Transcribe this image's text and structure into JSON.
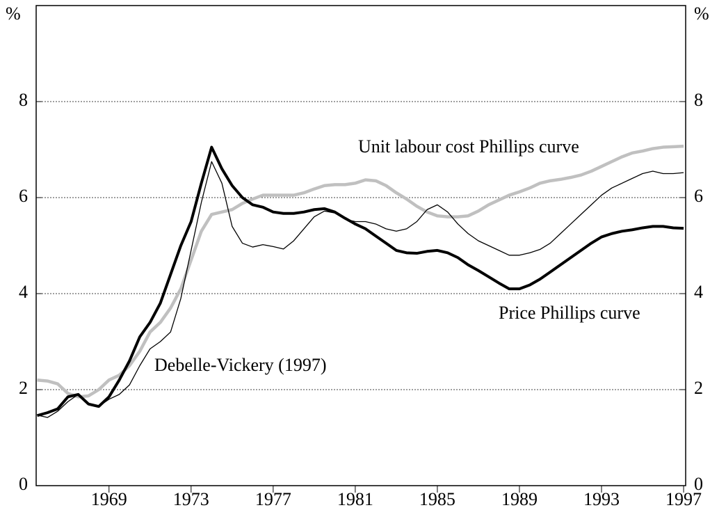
{
  "chart_data": {
    "type": "line",
    "ylabel": "%",
    "y2label": "%",
    "x": [
      1965.5,
      1966,
      1966.5,
      1967,
      1967.5,
      1968,
      1968.5,
      1969,
      1969.5,
      1970,
      1970.5,
      1971,
      1971.5,
      1972,
      1972.5,
      1973,
      1973.5,
      1974,
      1974.5,
      1975,
      1975.5,
      1976,
      1976.5,
      1977,
      1977.5,
      1978,
      1978.5,
      1979,
      1979.5,
      1980,
      1980.5,
      1981,
      1981.5,
      1982,
      1982.5,
      1983,
      1983.5,
      1984,
      1984.5,
      1985,
      1985.5,
      1986,
      1986.5,
      1987,
      1987.5,
      1988,
      1988.5,
      1989,
      1989.5,
      1990,
      1990.5,
      1991,
      1991.5,
      1992,
      1992.5,
      1993,
      1993.5,
      1994,
      1994.5,
      1995,
      1995.5,
      1996,
      1996.5,
      1997
    ],
    "series": [
      {
        "name": "Unit labour cost Phillips curve",
        "color": "#c0c0c0",
        "values": [
          2.2,
          2.18,
          2.12,
          1.92,
          1.85,
          1.87,
          2.0,
          2.2,
          2.3,
          2.5,
          2.8,
          3.2,
          3.4,
          3.7,
          4.1,
          4.7,
          5.3,
          5.65,
          5.7,
          5.75,
          5.88,
          5.97,
          6.05,
          6.05,
          6.05,
          6.05,
          6.1,
          6.18,
          6.25,
          6.27,
          6.27,
          6.3,
          6.37,
          6.35,
          6.25,
          6.1,
          5.97,
          5.82,
          5.7,
          5.62,
          5.6,
          5.6,
          5.62,
          5.72,
          5.85,
          5.95,
          6.05,
          6.12,
          6.2,
          6.3,
          6.35,
          6.38,
          6.42,
          6.47,
          6.55,
          6.65,
          6.75,
          6.85,
          6.93,
          6.97,
          7.02,
          7.05,
          7.06,
          7.07
        ]
      },
      {
        "name": "Price Phillips curve",
        "color": "#000000",
        "values": [
          1.46,
          1.52,
          1.6,
          1.85,
          1.9,
          1.7,
          1.65,
          1.85,
          2.2,
          2.6,
          3.1,
          3.4,
          3.8,
          4.4,
          5.0,
          5.5,
          6.3,
          7.05,
          6.6,
          6.25,
          6.0,
          5.85,
          5.8,
          5.7,
          5.67,
          5.67,
          5.7,
          5.75,
          5.77,
          5.7,
          5.57,
          5.45,
          5.35,
          5.2,
          5.05,
          4.9,
          4.85,
          4.84,
          4.88,
          4.9,
          4.85,
          4.75,
          4.6,
          4.48,
          4.35,
          4.22,
          4.1,
          4.1,
          4.18,
          4.3,
          4.45,
          4.6,
          4.75,
          4.9,
          5.05,
          5.18,
          5.25,
          5.3,
          5.33,
          5.37,
          5.4,
          5.4,
          5.37,
          5.36
        ]
      },
      {
        "name": "Debelle-Vickery (1997)",
        "color": "#000000",
        "values": [
          1.47,
          1.42,
          1.55,
          1.75,
          1.9,
          1.7,
          1.65,
          1.8,
          1.9,
          2.1,
          2.5,
          2.85,
          3.0,
          3.2,
          3.9,
          4.9,
          5.9,
          6.75,
          6.3,
          5.4,
          5.05,
          4.97,
          5.02,
          4.98,
          4.93,
          5.1,
          5.35,
          5.6,
          5.72,
          5.68,
          5.55,
          5.5,
          5.5,
          5.45,
          5.35,
          5.3,
          5.35,
          5.5,
          5.75,
          5.85,
          5.7,
          5.45,
          5.25,
          5.1,
          5.0,
          4.9,
          4.8,
          4.8,
          4.85,
          4.92,
          5.05,
          5.25,
          5.45,
          5.65,
          5.85,
          6.05,
          6.2,
          6.3,
          6.4,
          6.5,
          6.55,
          6.5,
          6.5,
          6.52
        ]
      }
    ],
    "xlim": [
      1965.45,
      1997.1
    ],
    "xticks": [
      1969,
      1973,
      1977,
      1981,
      1985,
      1989,
      1993,
      1997
    ],
    "ylim": [
      0,
      10
    ],
    "yticks": [
      0,
      2,
      4,
      6,
      8
    ],
    "y2lim": [
      0,
      10
    ],
    "y2ticks": [
      0,
      2,
      4,
      6,
      8
    ],
    "grid": true
  }
}
